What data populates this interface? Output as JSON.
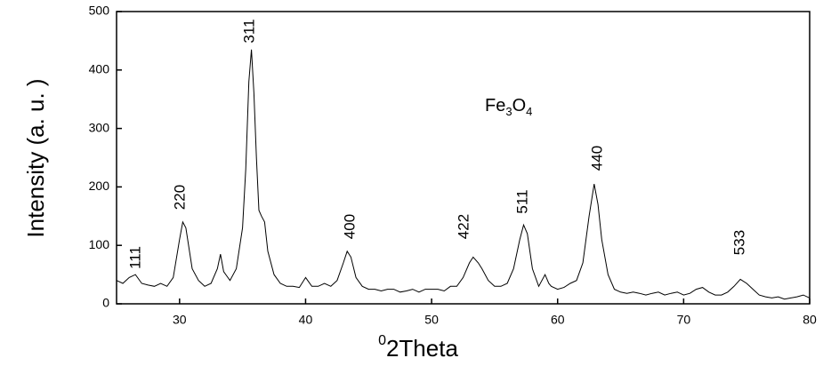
{
  "chart_data": {
    "type": "line",
    "y_label": "Intensity (a. u. )",
    "x_label_parts": [
      "0",
      "2Theta"
    ],
    "formula_parts": [
      "Fe",
      "3",
      "O",
      "4"
    ],
    "annotations": [
      "111",
      "220",
      "311",
      "400",
      "422",
      "511",
      "440",
      "533"
    ],
    "xlim": [
      25,
      80
    ],
    "ylim": [
      0,
      500
    ],
    "xticks": [
      30,
      40,
      50,
      60,
      70,
      80
    ],
    "yticks": [
      0,
      100,
      200,
      300,
      400,
      500
    ],
    "x": [
      25,
      25.5,
      26,
      26.5,
      27,
      27.5,
      28,
      28.5,
      29,
      29.5,
      30,
      30.25,
      30.5,
      31,
      31.5,
      32,
      32.5,
      33,
      33.25,
      33.5,
      34,
      34.5,
      35,
      35.25,
      35.5,
      35.7,
      35.9,
      36.1,
      36.3,
      36.5,
      36.75,
      37,
      37.5,
      38,
      38.5,
      39,
      39.5,
      40,
      40.5,
      41,
      41.5,
      42,
      42.5,
      43,
      43.3,
      43.6,
      44,
      44.5,
      45,
      45.5,
      46,
      46.5,
      47,
      47.5,
      48,
      48.5,
      49,
      49.5,
      50,
      50.5,
      51,
      51.5,
      52,
      52.5,
      53,
      53.3,
      53.7,
      54,
      54.5,
      55,
      55.5,
      56,
      56.5,
      57,
      57.3,
      57.6,
      58,
      58.5,
      59,
      59.3,
      59.5,
      60,
      60.5,
      61,
      61.5,
      62,
      62.5,
      62.9,
      63.2,
      63.5,
      64,
      64.5,
      65,
      65.5,
      66,
      66.5,
      67,
      67.5,
      68,
      68.5,
      69,
      69.5,
      70,
      70.5,
      71,
      71.5,
      72,
      72.5,
      73,
      73.5,
      74,
      74.5,
      75,
      75.5,
      76,
      76.5,
      77,
      77.5,
      78,
      78.5,
      79,
      79.5,
      80
    ],
    "series": [
      {
        "color": "#000000",
        "values": [
          40,
          35,
          45,
          50,
          35,
          32,
          30,
          35,
          30,
          45,
          110,
          140,
          130,
          60,
          40,
          30,
          35,
          60,
          85,
          55,
          40,
          60,
          130,
          230,
          380,
          435,
          360,
          250,
          160,
          150,
          140,
          90,
          50,
          35,
          30,
          30,
          28,
          45,
          30,
          30,
          35,
          30,
          40,
          70,
          90,
          80,
          45,
          30,
          25,
          25,
          22,
          25,
          25,
          20,
          22,
          25,
          20,
          25,
          25,
          25,
          22,
          30,
          30,
          45,
          70,
          80,
          70,
          60,
          40,
          30,
          30,
          35,
          60,
          110,
          135,
          120,
          60,
          30,
          50,
          35,
          30,
          25,
          28,
          35,
          40,
          70,
          150,
          205,
          170,
          110,
          50,
          25,
          20,
          18,
          20,
          18,
          15,
          18,
          20,
          15,
          18,
          20,
          15,
          18,
          25,
          28,
          20,
          15,
          15,
          20,
          30,
          42,
          35,
          25,
          15,
          12,
          10,
          12,
          8,
          10,
          12,
          15,
          10
        ]
      }
    ]
  }
}
